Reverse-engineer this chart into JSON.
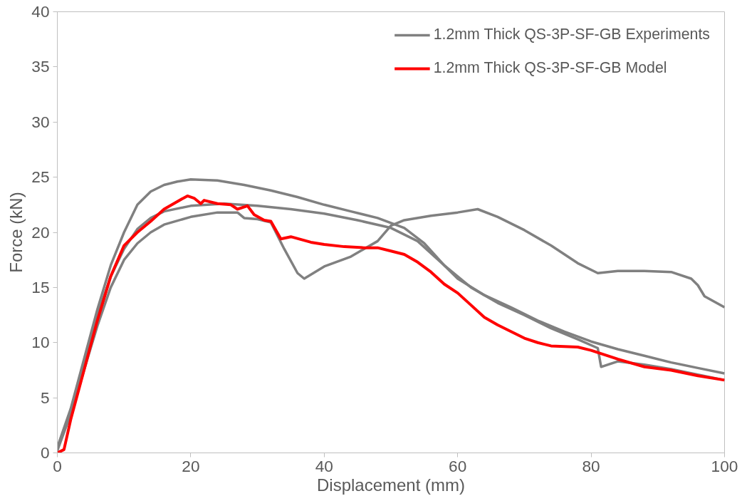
{
  "chart_data": {
    "type": "line",
    "xlabel": "Displacement (mm)",
    "ylabel": "Force (kN)",
    "xlim": [
      0,
      100
    ],
    "xticks": [
      0,
      20,
      40,
      60,
      80,
      100
    ],
    "ylim": [
      0,
      40
    ],
    "yticks": [
      0,
      5,
      10,
      15,
      20,
      25,
      30,
      35,
      40
    ],
    "grid": false,
    "legend": "top right",
    "marker": "none",
    "line_style": "solid",
    "series": [
      {
        "name": "1.2mm Thick QS-3P-SF-GB Experiments",
        "color": "#808080",
        "x": [
          0,
          2,
          4,
          6,
          8,
          10,
          12,
          14,
          16,
          18,
          20,
          24,
          28,
          32,
          36,
          40,
          44,
          48,
          52,
          55,
          58,
          60,
          64,
          68,
          72,
          76,
          80,
          84,
          88,
          92,
          96,
          100
        ],
        "values": [
          0.5,
          4,
          8.5,
          13,
          17,
          20,
          22.5,
          23.7,
          24.3,
          24.6,
          24.8,
          24.7,
          24.3,
          23.8,
          23.2,
          22.5,
          21.9,
          21.3,
          20.4,
          19.0,
          17,
          15.8,
          14.3,
          13.2,
          12.0,
          11.0,
          10.1,
          9.4,
          8.8,
          8.2,
          7.7,
          7.2
        ]
      },
      {
        "color": "#808080",
        "x": [
          0,
          2,
          4,
          6,
          8,
          10,
          12,
          14,
          16,
          20,
          25,
          30,
          35,
          40,
          45,
          50,
          54,
          58,
          62,
          66,
          70,
          74,
          78,
          81,
          81.5,
          84,
          88,
          92,
          96,
          100
        ],
        "values": [
          0.3,
          3.8,
          8,
          12.5,
          16,
          18.5,
          20.3,
          21.3,
          21.9,
          22.4,
          22.6,
          22.4,
          22.1,
          21.7,
          21.1,
          20.4,
          19.2,
          17.0,
          15.0,
          13.6,
          12.5,
          11.3,
          10.3,
          9.5,
          7.8,
          8.3,
          8.0,
          7.6,
          7.1,
          6.6
        ]
      },
      {
        "color": "#808080",
        "x": [
          0,
          2,
          4,
          6,
          8,
          10,
          12,
          14,
          16,
          20,
          24,
          27,
          28,
          30,
          32,
          34,
          36,
          37,
          40,
          44,
          48,
          50,
          52,
          56,
          60,
          63,
          66,
          70,
          74,
          78,
          81,
          84,
          88,
          92,
          95,
          96,
          97,
          100
        ],
        "values": [
          0.2,
          3.5,
          7.5,
          11.5,
          15,
          17.5,
          19,
          20,
          20.7,
          21.4,
          21.8,
          21.8,
          21.3,
          21.2,
          20.9,
          18.5,
          16.3,
          15.8,
          16.9,
          17.8,
          19.2,
          20.6,
          21.1,
          21.5,
          21.8,
          22.1,
          21.4,
          20.2,
          18.8,
          17.2,
          16.3,
          16.5,
          16.5,
          16.4,
          15.8,
          15.2,
          14.2,
          13.2
        ]
      },
      {
        "name": "1.2mm Thick QS-3P-SF-GB Model",
        "color": "#ff0000",
        "x": [
          0,
          1,
          2,
          4,
          6,
          8,
          10,
          12,
          14,
          16,
          18,
          19.5,
          20.5,
          21.5,
          22,
          24,
          26,
          27,
          28.5,
          29.5,
          31,
          32,
          33.5,
          35,
          38,
          40,
          43,
          46,
          48,
          50,
          52,
          54,
          56,
          58,
          60,
          62,
          64,
          66,
          68,
          70,
          72,
          74,
          78,
          80,
          84,
          88,
          92,
          96,
          100
        ],
        "values": [
          0,
          0.3,
          3,
          7.5,
          12,
          16,
          18.8,
          20.0,
          21.0,
          22.1,
          22.8,
          23.3,
          23.1,
          22.6,
          22.9,
          22.6,
          22.5,
          22.1,
          22.4,
          21.6,
          21.1,
          21.0,
          19.4,
          19.6,
          19.1,
          18.9,
          18.7,
          18.6,
          18.6,
          18.3,
          18.0,
          17.3,
          16.4,
          15.3,
          14.5,
          13.4,
          12.3,
          11.6,
          11.0,
          10.4,
          10.0,
          9.7,
          9.6,
          9.3,
          8.5,
          7.8,
          7.5,
          7.0,
          6.6
        ]
      }
    ]
  }
}
